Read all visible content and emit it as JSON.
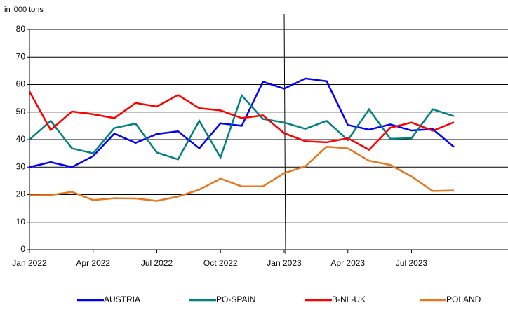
{
  "chart_data": {
    "type": "line",
    "y_label": "in '000 tons",
    "categories": [
      "Jan 2022",
      null,
      null,
      "Apr 2022",
      null,
      null,
      "Jul 2022",
      null,
      null,
      "Oct 2022",
      null,
      null,
      "Jan 2023",
      null,
      null,
      "Apr 2023",
      null,
      null,
      "Jul 2023",
      null,
      null
    ],
    "series": [
      {
        "name": "AUSTRIA",
        "color": "#0000ff",
        "values": [
          30,
          31.8,
          30,
          34,
          42.2,
          38.8,
          42,
          43,
          36.8,
          45.9,
          45,
          61,
          58.5,
          62.2,
          61.2,
          45.3,
          43.6,
          45.5,
          43.3,
          43.8,
          37.3
        ]
      },
      {
        "name": "PO-SPAIN",
        "color": "#008080",
        "values": [
          40,
          46.8,
          36.8,
          35,
          44.2,
          45.8,
          35.3,
          32.8,
          46.8,
          33.5,
          56,
          47.5,
          46.2,
          43.9,
          46.8,
          39.8,
          51,
          40.3,
          40.5,
          51,
          48.5
        ]
      },
      {
        "name": "B-NL-UK",
        "color": "#ff0000",
        "values": [
          57.5,
          43.5,
          50.2,
          49.2,
          47.8,
          53.3,
          52,
          56.2,
          51.4,
          50.6,
          47.8,
          48.8,
          42.3,
          39.4,
          39,
          40.5,
          36.3,
          44.3,
          46.2,
          43.2,
          46.3
        ]
      },
      {
        "name": "POLAND",
        "color": "#e8771f",
        "values": [
          19.7,
          19.8,
          21,
          18,
          18.7,
          18.6,
          17.7,
          19.3,
          21.8,
          25.8,
          23,
          23,
          27.8,
          30.3,
          37.4,
          36.8,
          32.3,
          30.8,
          26.6,
          21.3,
          21.5
        ]
      }
    ],
    "ylim": [
      0,
      80
    ],
    "yticks": [
      0,
      10,
      20,
      30,
      40,
      50,
      60,
      70,
      80
    ],
    "grid": true
  }
}
